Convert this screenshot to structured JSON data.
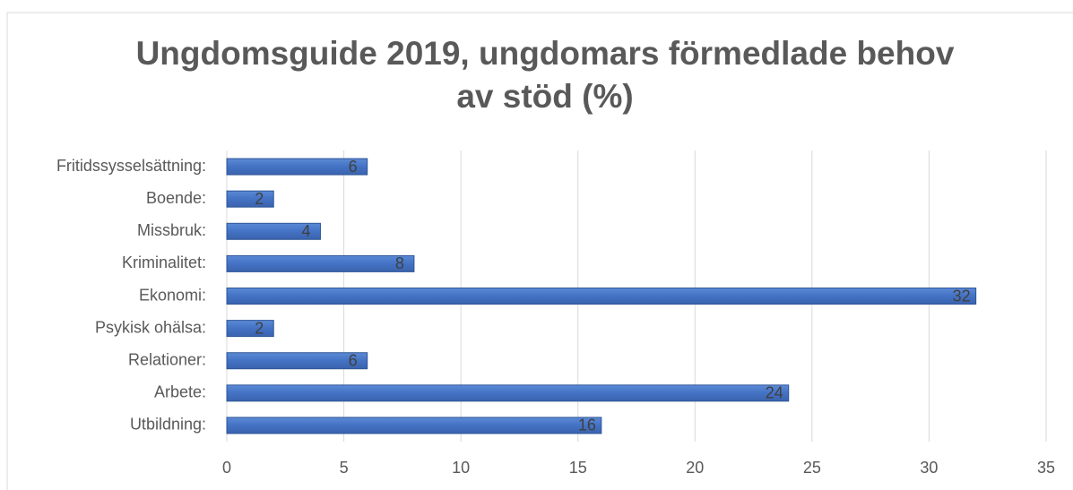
{
  "chart_data": {
    "type": "barh",
    "title": [
      "Ungdomsguide 2019, ungdomars förmedlade behov",
      "av stöd (%)"
    ],
    "categories": [
      "Utbildning:",
      "Arbete:",
      "Relationer:",
      "Psykisk ohälsa:",
      "Ekonomi:",
      "Kriminalitet:",
      "Missbruk:",
      "Boende:",
      "Fritidssysselsättning:"
    ],
    "values": [
      16,
      24,
      6,
      2,
      32,
      8,
      4,
      2,
      6
    ],
    "color": "#4472c4",
    "xlim": [
      0,
      35
    ],
    "xticks": [
      0,
      5,
      10,
      15,
      20,
      25,
      30,
      35
    ],
    "grid": true
  }
}
